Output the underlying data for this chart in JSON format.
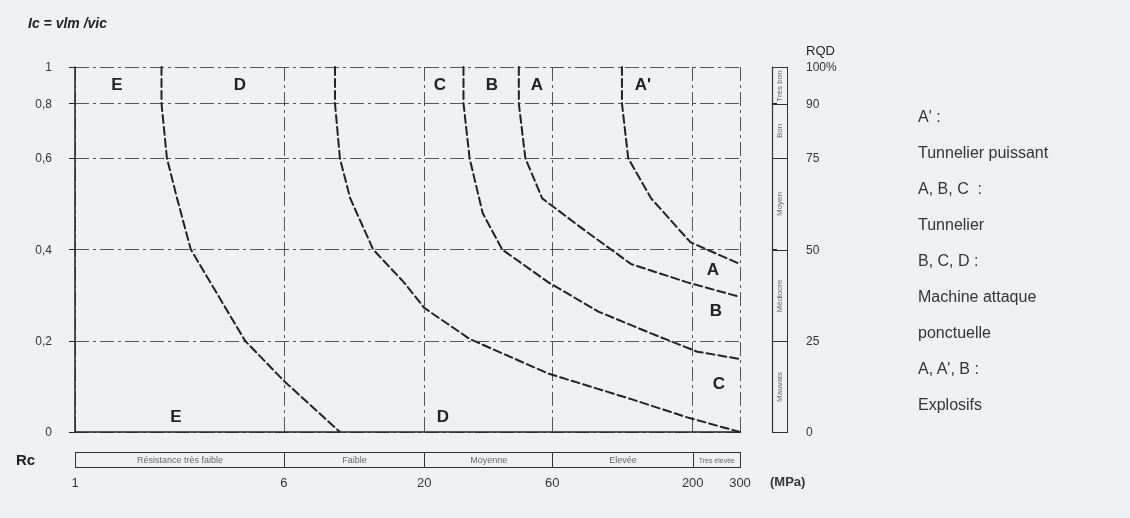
{
  "chart_data": {
    "type": "line",
    "xlabel": "Rc",
    "ylabel": "RQD",
    "log": "x",
    "xlim": [
      1,
      300
    ],
    "xticks": [
      1,
      6,
      20,
      60,
      200,
      300
    ],
    "ylim": [
      0,
      100
    ],
    "yticks": [
      0,
      25,
      50,
      75,
      90,
      {
        "value": 100,
        "label": "100%"
      }
    ],
    "grid": true,
    "marker": "none",
    "line_style": "dashed",
    "series": [
      {
        "color": "#222222",
        "x": [
          2.1,
          2.1,
          2.2,
          2.4,
          2.7,
          4.3,
          6,
          9.7
        ],
        "values": [
          100,
          90,
          75,
          64,
          50,
          25,
          14,
          0
        ]
      },
      {
        "color": "#222222",
        "x": [
          9.3,
          9.3,
          9.7,
          10.6,
          12.9,
          16.8,
          20,
          29.5,
          58,
          118,
          191,
          300
        ],
        "values": [
          100,
          90,
          75,
          64,
          50,
          41,
          34,
          25.5,
          16,
          9,
          4,
          0
        ]
      },
      {
        "color": "#222222",
        "x": [
          28,
          28,
          29.5,
          33,
          39,
          58,
          89,
          140,
          208,
          300
        ],
        "values": [
          100,
          90,
          75,
          60,
          50,
          41,
          33,
          27,
          22,
          20
        ]
      },
      {
        "color": "#222222",
        "x": [
          45,
          45,
          47.6,
          55,
          80,
          118,
          191,
          300
        ],
        "values": [
          100,
          90,
          75,
          64,
          55,
          46,
          41,
          37
        ]
      },
      {
        "color": "#222222",
        "x": [
          109,
          109,
          115,
          140,
          196,
          300
        ],
        "values": [
          100,
          90,
          75,
          64,
          52,
          46
        ]
      }
    ],
    "annotations": [
      "Ic = vlm /vic",
      "0",
      "0,2",
      "0,4",
      "0,6",
      "0,8",
      "1",
      "E",
      "D",
      "C",
      "B",
      "A",
      "A'",
      "E",
      "D",
      "A",
      "B",
      "C",
      "(MPa)",
      "A' :",
      "Tunnelier puissant",
      "A, B, C  :",
      "Tunnelier",
      "B, C, D :",
      "Machine attaque",
      "ponctuelle",
      "A, A', B :",
      "Explosifs",
      "Résistance très faible",
      "Faible",
      "Moyenne",
      "Elevée",
      "Très élevée",
      "Très bon",
      "Bon",
      "Moyen",
      "Médiocre",
      "Mauvais"
    ]
  }
}
